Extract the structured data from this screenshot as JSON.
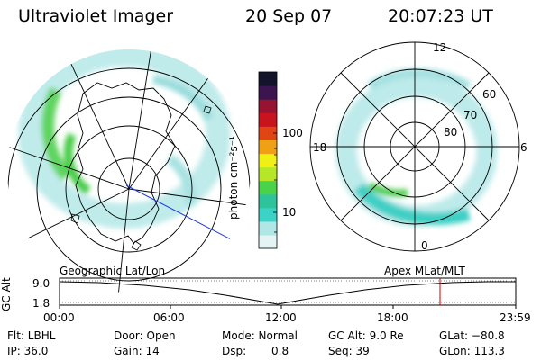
{
  "header": {
    "instrument": "Ultraviolet Imager",
    "date": "20 Sep 07",
    "time": "20:07:23 UT"
  },
  "colorbar": {
    "unit_label": "photon cm⁻²s⁻¹",
    "ticks": [
      "100",
      "10"
    ],
    "colors": [
      "#e4f4f4",
      "#b0e6e6",
      "#3cd2c8",
      "#2ec39a",
      "#4ad24a",
      "#b6e628",
      "#f0f014",
      "#f0a014",
      "#e04614",
      "#c8141e",
      "#961432",
      "#3c1450",
      "#14142d"
    ]
  },
  "geographic_panel": {
    "label": "Geographic Lat/Lon"
  },
  "magnetic_panel": {
    "label": "Apex MLat/MLT",
    "mlt_labels": {
      "top": "12",
      "bottom": "0",
      "left": "18",
      "right": "6"
    },
    "mlat_labels": [
      "60",
      "70",
      "80"
    ]
  },
  "altitude_plot": {
    "ylabel": "GC Alt",
    "yticks": [
      "9.0",
      "1.8"
    ],
    "xticks": [
      "00:00",
      "06:00",
      "12:00",
      "18:00",
      "23:59"
    ],
    "marker_color": "#cc0000"
  },
  "info": {
    "filter": "Flt: LBHL",
    "ip": "IP: 36.0",
    "door": "Door: Open",
    "gain": "Gain: 14",
    "mode": "Mode: Normal",
    "dsp_label": "Dsp:",
    "dsp_value": "0.8",
    "gc_alt": "GC Alt: 9.0 Re",
    "seq": "Seq: 39",
    "glat": "GLat: −80.8",
    "glon": "GLon: 113.3"
  }
}
